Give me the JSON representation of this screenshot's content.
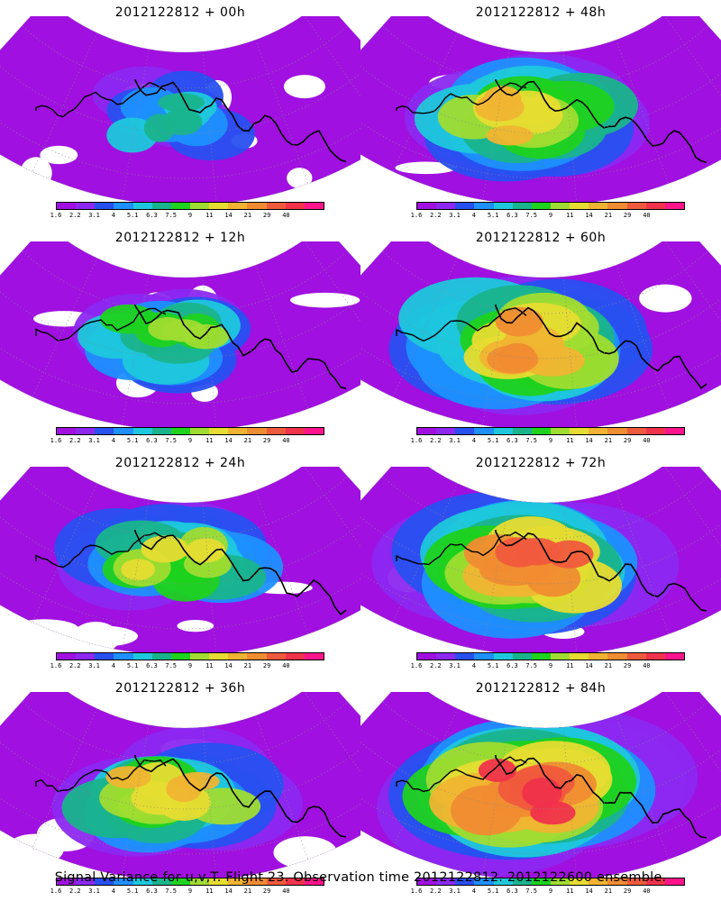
{
  "panels": [
    {
      "title": "2012122812 + 00h",
      "intensity": 0.15
    },
    {
      "title": "2012122812 + 48h",
      "intensity": 0.6
    },
    {
      "title": "2012122812 + 12h",
      "intensity": 0.3
    },
    {
      "title": "2012122812 + 60h",
      "intensity": 0.72
    },
    {
      "title": "2012122812 + 24h",
      "intensity": 0.42
    },
    {
      "title": "2012122812 + 72h",
      "intensity": 0.8
    },
    {
      "title": "2012122812 + 36h",
      "intensity": 0.5
    },
    {
      "title": "2012122812 + 84h",
      "intensity": 0.88
    }
  ],
  "colorbar": {
    "labels": [
      "1.6",
      "2.2",
      "3.1",
      "4",
      "5.1",
      "6.3",
      "7.5",
      "9",
      "11",
      "14",
      "21",
      "29",
      "40"
    ],
    "colors": [
      "#a010e0",
      "#8c28f0",
      "#2850f0",
      "#1e90ff",
      "#1ec8dc",
      "#19b48c",
      "#1ed21e",
      "#a0dc32",
      "#e6dc32",
      "#f0b432",
      "#f08c32",
      "#f05a3c",
      "#f0324b",
      "#ff148c"
    ]
  },
  "caption": "Signal Variance for u,v,T. Flight 23. Observation time 2012122812. 2012122600 ensemble."
}
